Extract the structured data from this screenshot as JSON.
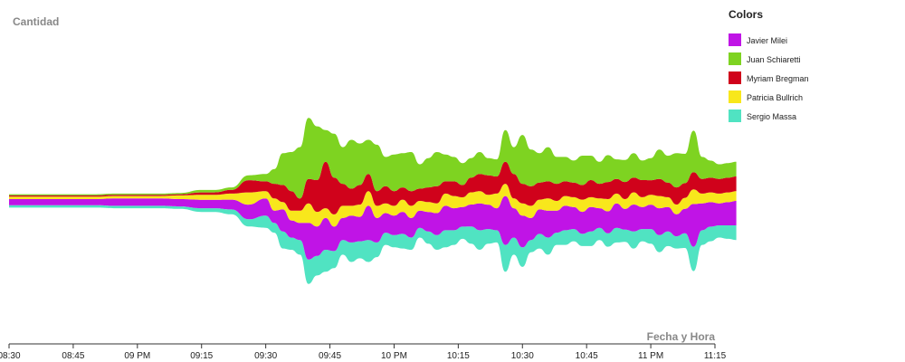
{
  "chart_data": {
    "type": "area",
    "stacked": "streamgraph",
    "ylabel": "Cantidad",
    "xlabel": "Fecha y Hora",
    "x_ticks": [
      "08:30",
      "08:45",
      "09 PM",
      "09:15",
      "09:30",
      "09:45",
      "10 PM",
      "10:15",
      "10:30",
      "10:45",
      "11 PM",
      "11:15"
    ],
    "legend": {
      "title": "Colors",
      "placement": "top-right",
      "entries": [
        {
          "label": "Javier Milei",
          "color": "#c014e6"
        },
        {
          "label": "Juan Schiaretti",
          "color": "#7ed321"
        },
        {
          "label": "Myriam Bregman",
          "color": "#d0021b"
        },
        {
          "label": "Patricia Bullrich",
          "color": "#f8e71c"
        },
        {
          "label": "Sergio Massa",
          "color": "#50e3c2"
        }
      ]
    },
    "x_minutes": [
      0,
      5,
      10,
      15,
      20,
      25,
      30,
      35,
      40,
      45,
      48,
      52,
      56,
      60,
      62,
      64,
      66,
      68,
      70,
      72,
      74,
      76,
      78,
      80,
      82,
      84,
      86,
      88,
      90,
      92,
      94,
      96,
      98,
      100,
      102,
      104,
      106,
      108,
      110,
      112,
      114,
      116,
      118,
      120,
      122,
      124,
      126,
      128,
      130,
      132,
      134,
      136,
      138,
      140,
      142,
      144,
      146,
      148,
      150,
      152,
      154,
      156,
      158,
      160,
      162,
      164,
      166,
      168,
      170
    ],
    "series": [
      {
        "name": "Sergio Massa",
        "values": [
          2,
          2,
          2,
          2,
          2,
          2,
          2,
          2,
          2,
          3,
          3,
          4,
          6,
          10,
          8,
          14,
          10,
          12,
          20,
          16,
          18,
          14,
          12,
          16,
          14,
          18,
          12,
          10,
          10,
          12,
          10,
          8,
          10,
          12,
          14,
          12,
          10,
          14,
          16,
          12,
          10,
          22,
          14,
          16,
          10,
          12,
          14,
          10,
          12,
          10,
          10,
          12,
          10,
          11,
          12,
          10,
          14,
          10,
          12,
          14,
          12,
          10,
          12,
          20,
          12,
          12,
          10,
          11,
          12
        ]
      },
      {
        "name": "Javier Milei",
        "values": [
          5,
          5,
          5,
          5,
          5,
          6,
          6,
          6,
          6,
          7,
          7,
          8,
          12,
          14,
          10,
          18,
          14,
          14,
          30,
          24,
          26,
          20,
          18,
          22,
          20,
          28,
          20,
          16,
          16,
          18,
          16,
          14,
          16,
          18,
          20,
          18,
          16,
          18,
          22,
          20,
          18,
          40,
          24,
          26,
          18,
          20,
          22,
          18,
          20,
          18,
          18,
          20,
          16,
          18,
          20,
          17,
          22,
          18,
          20,
          22,
          20,
          18,
          20,
          35,
          22,
          20,
          18,
          19,
          20
        ]
      },
      {
        "name": "Patricia Bullrich",
        "values": [
          2,
          2,
          2,
          2,
          2,
          2,
          2,
          2,
          3,
          4,
          4,
          5,
          10,
          6,
          10,
          6,
          8,
          10,
          16,
          12,
          8,
          10,
          10,
          8,
          10,
          12,
          10,
          8,
          8,
          10,
          10,
          8,
          8,
          8,
          10,
          10,
          8,
          10,
          10,
          8,
          12,
          10,
          8,
          10,
          10,
          8,
          10,
          8,
          8,
          8,
          10,
          8,
          8,
          10,
          8,
          8,
          10,
          8,
          8,
          10,
          8,
          8,
          9,
          12,
          8,
          8,
          8,
          8,
          8
        ]
      },
      {
        "name": "Myriam Bregman",
        "values": [
          1,
          1,
          1,
          1,
          1,
          1,
          1,
          1,
          1,
          2,
          2,
          3,
          10,
          8,
          12,
          14,
          16,
          10,
          20,
          26,
          38,
          30,
          18,
          14,
          16,
          14,
          12,
          14,
          12,
          10,
          12,
          10,
          12,
          14,
          10,
          12,
          10,
          12,
          14,
          16,
          14,
          18,
          20,
          16,
          16,
          14,
          14,
          14,
          12,
          12,
          12,
          14,
          12,
          14,
          12,
          14,
          12,
          14,
          12,
          14,
          12,
          14,
          12,
          14,
          12,
          12,
          12,
          12,
          12
        ]
      },
      {
        "name": "Juan Schiaretti",
        "values": [
          1,
          1,
          1,
          1,
          1,
          1,
          1,
          1,
          1,
          2,
          2,
          2,
          4,
          6,
          12,
          26,
          32,
          42,
          50,
          44,
          26,
          36,
          30,
          40,
          34,
          28,
          38,
          24,
          30,
          28,
          32,
          20,
          24,
          28,
          22,
          20,
          18,
          16,
          18,
          14,
          14,
          26,
          22,
          40,
          30,
          24,
          28,
          22,
          20,
          18,
          24,
          20,
          18,
          22,
          16,
          18,
          20,
          16,
          18,
          24,
          22,
          28,
          24,
          34,
          18,
          14,
          12,
          12,
          12
        ]
      }
    ]
  }
}
